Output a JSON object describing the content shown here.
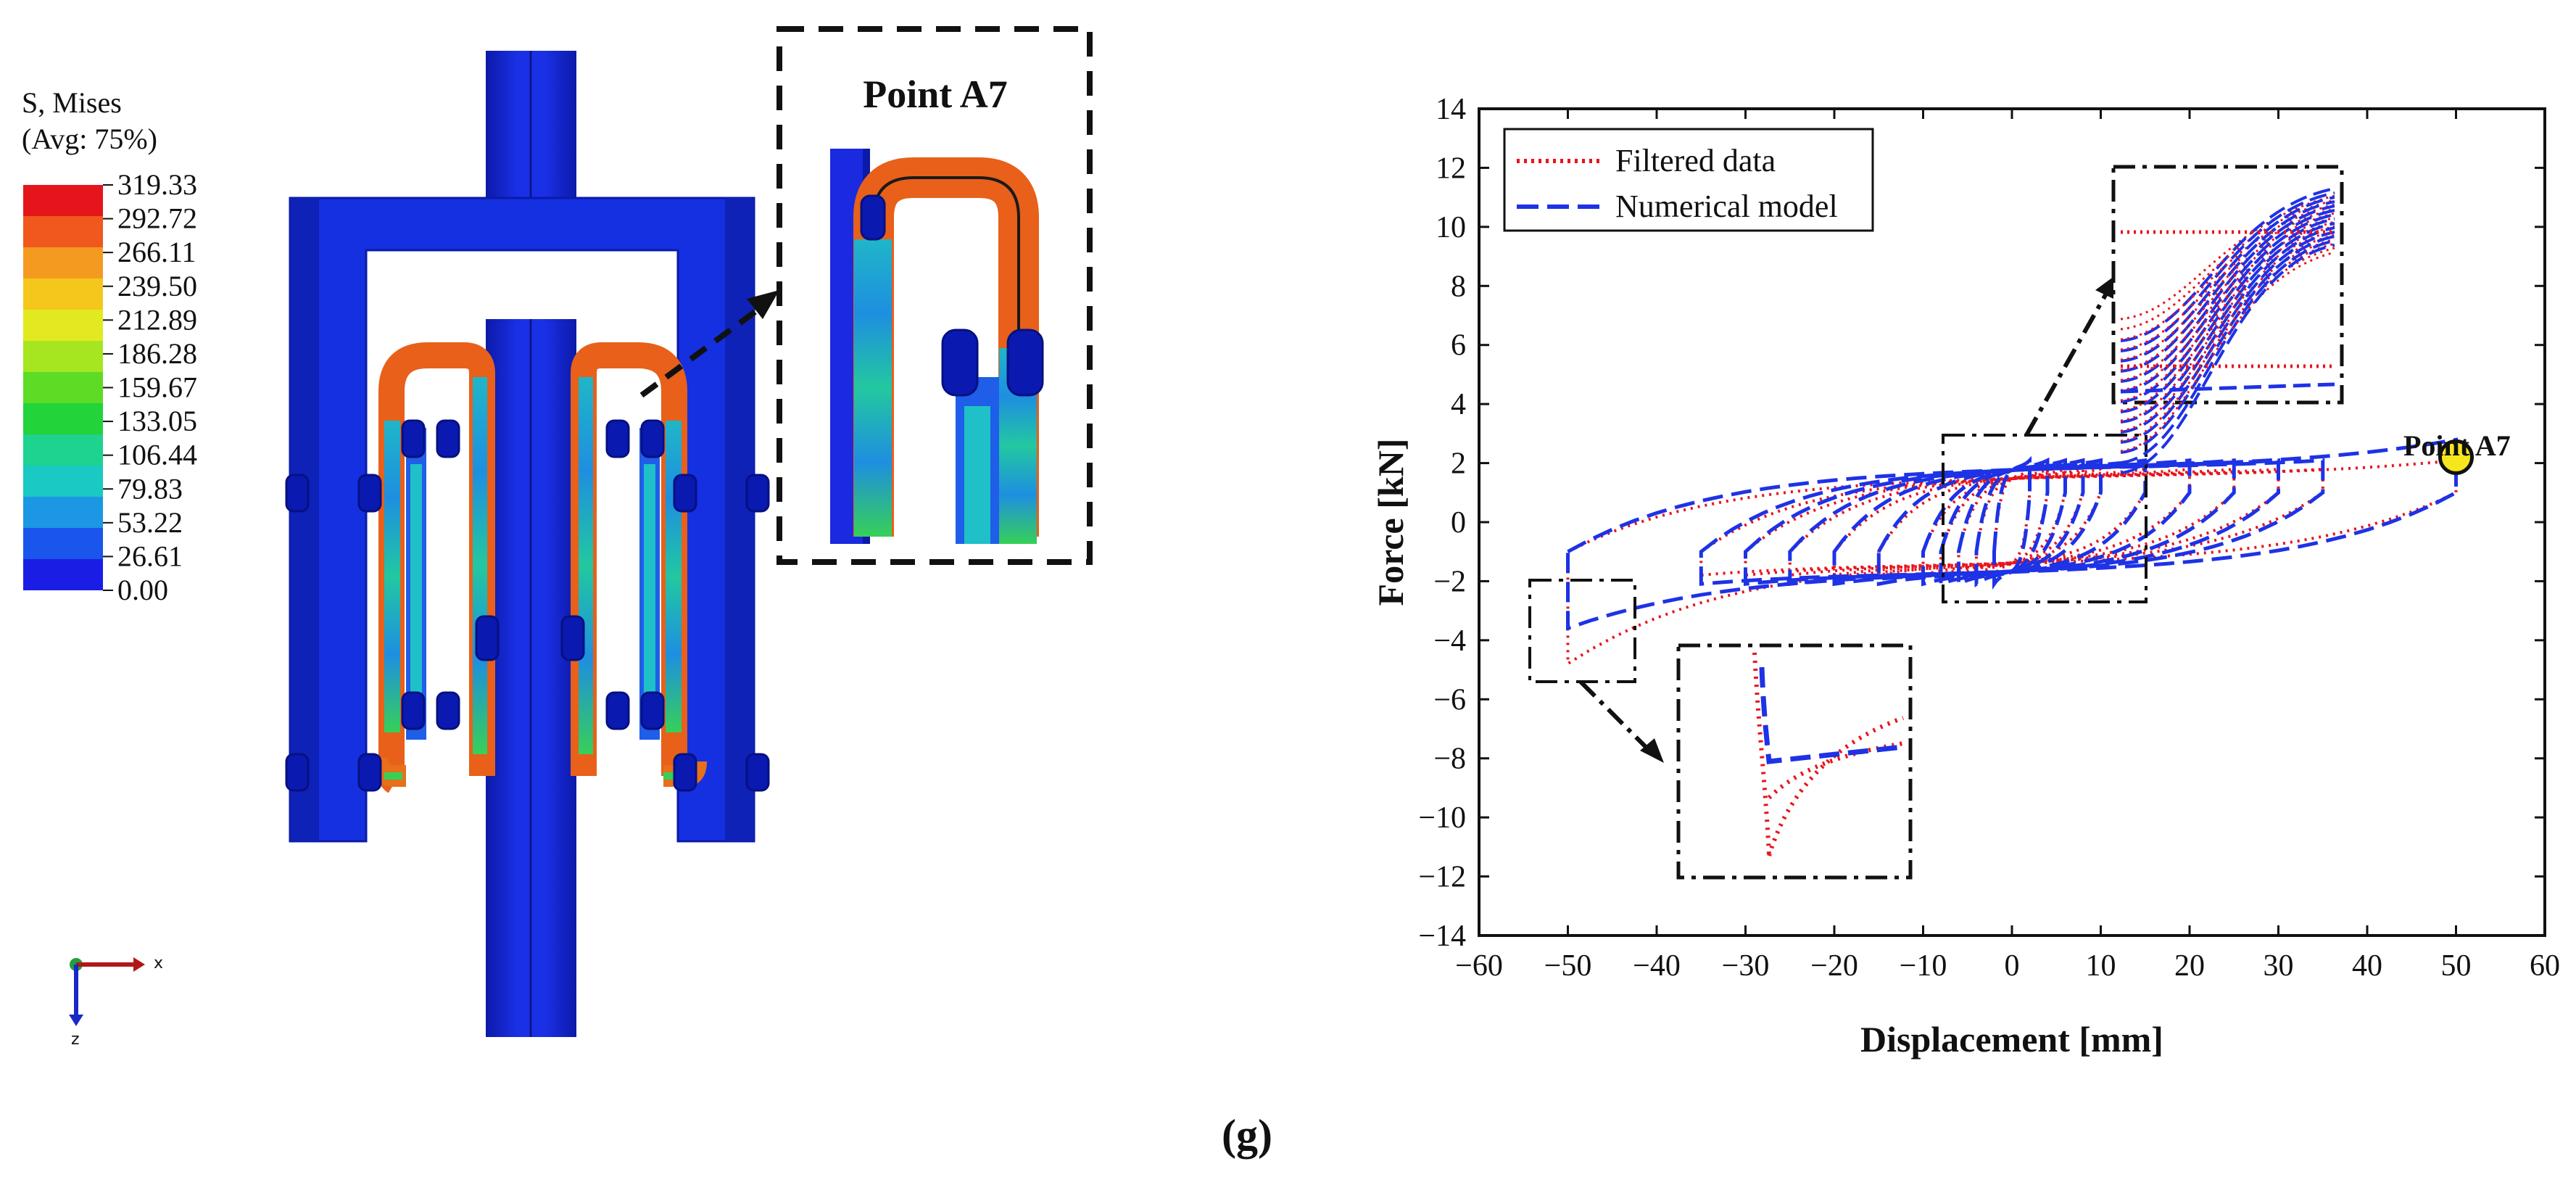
{
  "panel_label": "(g)",
  "fea": {
    "legend_title_1": "S, Mises",
    "legend_title_2": "(Avg: 75%)",
    "legend_values": [
      "319.33",
      "292.72",
      "266.11",
      "239.50",
      "212.89",
      "186.28",
      "159.67",
      "133.05",
      "106.44",
      "79.83",
      "53.22",
      "26.61",
      "0.00"
    ],
    "legend_colors": [
      "#e4151b",
      "#f0581d",
      "#f59a21",
      "#f5c61b",
      "#e3e920",
      "#a6e620",
      "#5edb24",
      "#22d33a",
      "#1ed28f",
      "#1ac8c4",
      "#1b97e4",
      "#1a55ec",
      "#1a1ee4"
    ],
    "inset_title": "Point A7",
    "axis_x": "x",
    "axis_z": "z",
    "colors": {
      "body": "#1428d8",
      "body_dark": "#0c1aa8",
      "hot": "#e8601a",
      "warm": "#f0a020"
    }
  },
  "chart_data": {
    "type": "line",
    "xlabel": "Displacement [mm]",
    "ylabel": "Force [kN]",
    "xlim": [
      -60,
      60
    ],
    "ylim": [
      -14,
      14
    ],
    "xticks": [
      -60,
      -50,
      -40,
      -30,
      -20,
      -10,
      0,
      10,
      20,
      30,
      40,
      50,
      60
    ],
    "yticks": [
      -14,
      -12,
      -10,
      -8,
      -6,
      -4,
      -2,
      0,
      2,
      4,
      6,
      8,
      10,
      12,
      14
    ],
    "xtick_labels": [
      "−60",
      "−50",
      "−40",
      "−30",
      "−20",
      "−10",
      "0",
      "10",
      "20",
      "30",
      "40",
      "50",
      "60"
    ],
    "ytick_labels": [
      "−14",
      "−12",
      "−10",
      "−8",
      "−6",
      "−4",
      "−2",
      "0",
      "2",
      "4",
      "6",
      "8",
      "10",
      "12",
      "14"
    ],
    "legend": [
      {
        "name": "Filtered data",
        "color": "#e8141c",
        "style": "dotted"
      },
      {
        "name": "Numerical model",
        "color": "#1e32e6",
        "style": "dashed"
      }
    ],
    "legend_position": "top-left",
    "point_label": "Point A7",
    "point": {
      "x": 50,
      "y": 2.2
    },
    "loop_amplitudes": [
      2,
      4,
      6,
      8,
      10,
      15,
      20,
      25,
      30,
      35,
      50
    ],
    "series": [
      {
        "name": "Filtered data",
        "color": "#e8141c",
        "upper_force": 1.6,
        "lower_force": -1.5,
        "peak_force": 2.1,
        "min_force": -4.8
      },
      {
        "name": "Numerical model",
        "color": "#1e32e6",
        "upper_force": 1.9,
        "lower_force": -1.8,
        "peak_force": 2.8,
        "min_force": -3.6
      }
    ]
  }
}
